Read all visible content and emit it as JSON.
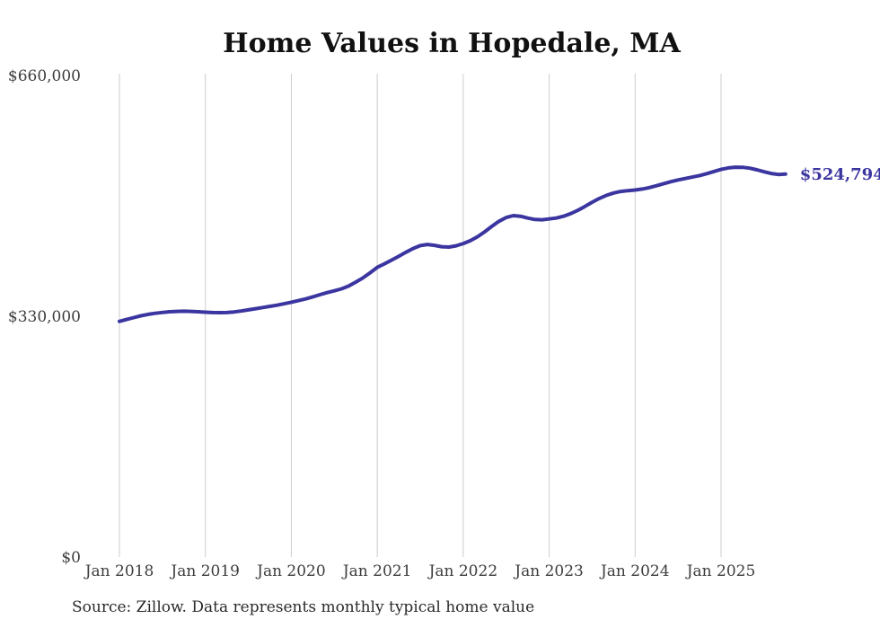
{
  "title": "Home Values in Hopedale, MA",
  "source_note": "Source: Zillow. Data represents monthly typical home value",
  "colors": {
    "line": "#3b35a0",
    "grid": "#cccccc",
    "title_text": "#111111",
    "axis_text": "#3d3d3d",
    "source_text": "#2b2b2b",
    "end_label_text": "#3b35a0",
    "background": "#ffffff"
  },
  "chart_data": {
    "type": "line",
    "title": "Home Values in Hopedale, MA",
    "xlabel": "",
    "ylabel": "",
    "ylim": [
      0,
      660000
    ],
    "grid": "vertical-yearly-only",
    "legend_position": "none",
    "end_value": 524794,
    "end_value_label": "$524,794",
    "yticks": [
      {
        "label": "$0",
        "value": 0
      },
      {
        "label": "$330,000",
        "value": 330000
      },
      {
        "label": "$660,000",
        "value": 660000
      }
    ],
    "xticks": [
      {
        "label": "Jan 2018",
        "month_index": 0
      },
      {
        "label": "Jan 2019",
        "month_index": 12
      },
      {
        "label": "Jan 2020",
        "month_index": 24
      },
      {
        "label": "Jan 2021",
        "month_index": 36
      },
      {
        "label": "Jan 2022",
        "month_index": 48
      },
      {
        "label": "Jan 2023",
        "month_index": 60
      },
      {
        "label": "Jan 2024",
        "month_index": 72
      },
      {
        "label": "Jan 2025",
        "month_index": 84
      }
    ],
    "x": [
      "2018-01",
      "2018-02",
      "2018-03",
      "2018-04",
      "2018-05",
      "2018-06",
      "2018-07",
      "2018-08",
      "2018-09",
      "2018-10",
      "2018-11",
      "2018-12",
      "2019-01",
      "2019-02",
      "2019-03",
      "2019-04",
      "2019-05",
      "2019-06",
      "2019-07",
      "2019-08",
      "2019-09",
      "2019-10",
      "2019-11",
      "2019-12",
      "2020-01",
      "2020-02",
      "2020-03",
      "2020-04",
      "2020-05",
      "2020-06",
      "2020-07",
      "2020-08",
      "2020-09",
      "2020-10",
      "2020-11",
      "2020-12",
      "2021-01",
      "2021-02",
      "2021-03",
      "2021-04",
      "2021-05",
      "2021-06",
      "2021-07",
      "2021-08",
      "2021-09",
      "2021-10",
      "2021-11",
      "2021-12",
      "2022-01",
      "2022-02",
      "2022-03",
      "2022-04",
      "2022-05",
      "2022-06",
      "2022-07",
      "2022-08",
      "2022-09",
      "2022-10",
      "2022-11",
      "2022-12",
      "2023-01",
      "2023-02",
      "2023-03",
      "2023-04",
      "2023-05",
      "2023-06",
      "2023-07",
      "2023-08",
      "2023-09",
      "2023-10",
      "2023-11",
      "2023-12",
      "2024-01",
      "2024-02",
      "2024-03",
      "2024-04",
      "2024-05",
      "2024-06",
      "2024-07",
      "2024-08",
      "2024-09",
      "2024-10",
      "2024-11",
      "2024-12",
      "2025-01",
      "2025-02",
      "2025-03",
      "2025-04",
      "2025-05",
      "2025-06",
      "2025-07",
      "2025-08",
      "2025-09",
      "2025-10"
    ],
    "values": [
      323000,
      325600,
      328200,
      330600,
      332600,
      334100,
      335200,
      336100,
      336700,
      336900,
      336600,
      336100,
      335600,
      335100,
      334900,
      335100,
      335900,
      337100,
      338700,
      340300,
      341900,
      343500,
      345200,
      347100,
      349200,
      351400,
      353800,
      356600,
      359600,
      362400,
      364800,
      367600,
      371400,
      376800,
      382600,
      389600,
      397000,
      401800,
      406900,
      412300,
      417700,
      422800,
      426800,
      428400,
      427200,
      425300,
      424800,
      426500,
      429600,
      433500,
      439000,
      445800,
      453200,
      460200,
      465300,
      467900,
      467000,
      464600,
      462600,
      462300,
      463400,
      464600,
      467000,
      470600,
      475200,
      480600,
      486200,
      491400,
      495800,
      499000,
      501000,
      502100,
      503000,
      504300,
      506300,
      508900,
      511800,
      514500,
      516800,
      518800,
      520700,
      522800,
      525400,
      528400,
      531200,
      533300,
      534300,
      534200,
      532900,
      530700,
      528000,
      525600,
      524300,
      524794
    ]
  }
}
